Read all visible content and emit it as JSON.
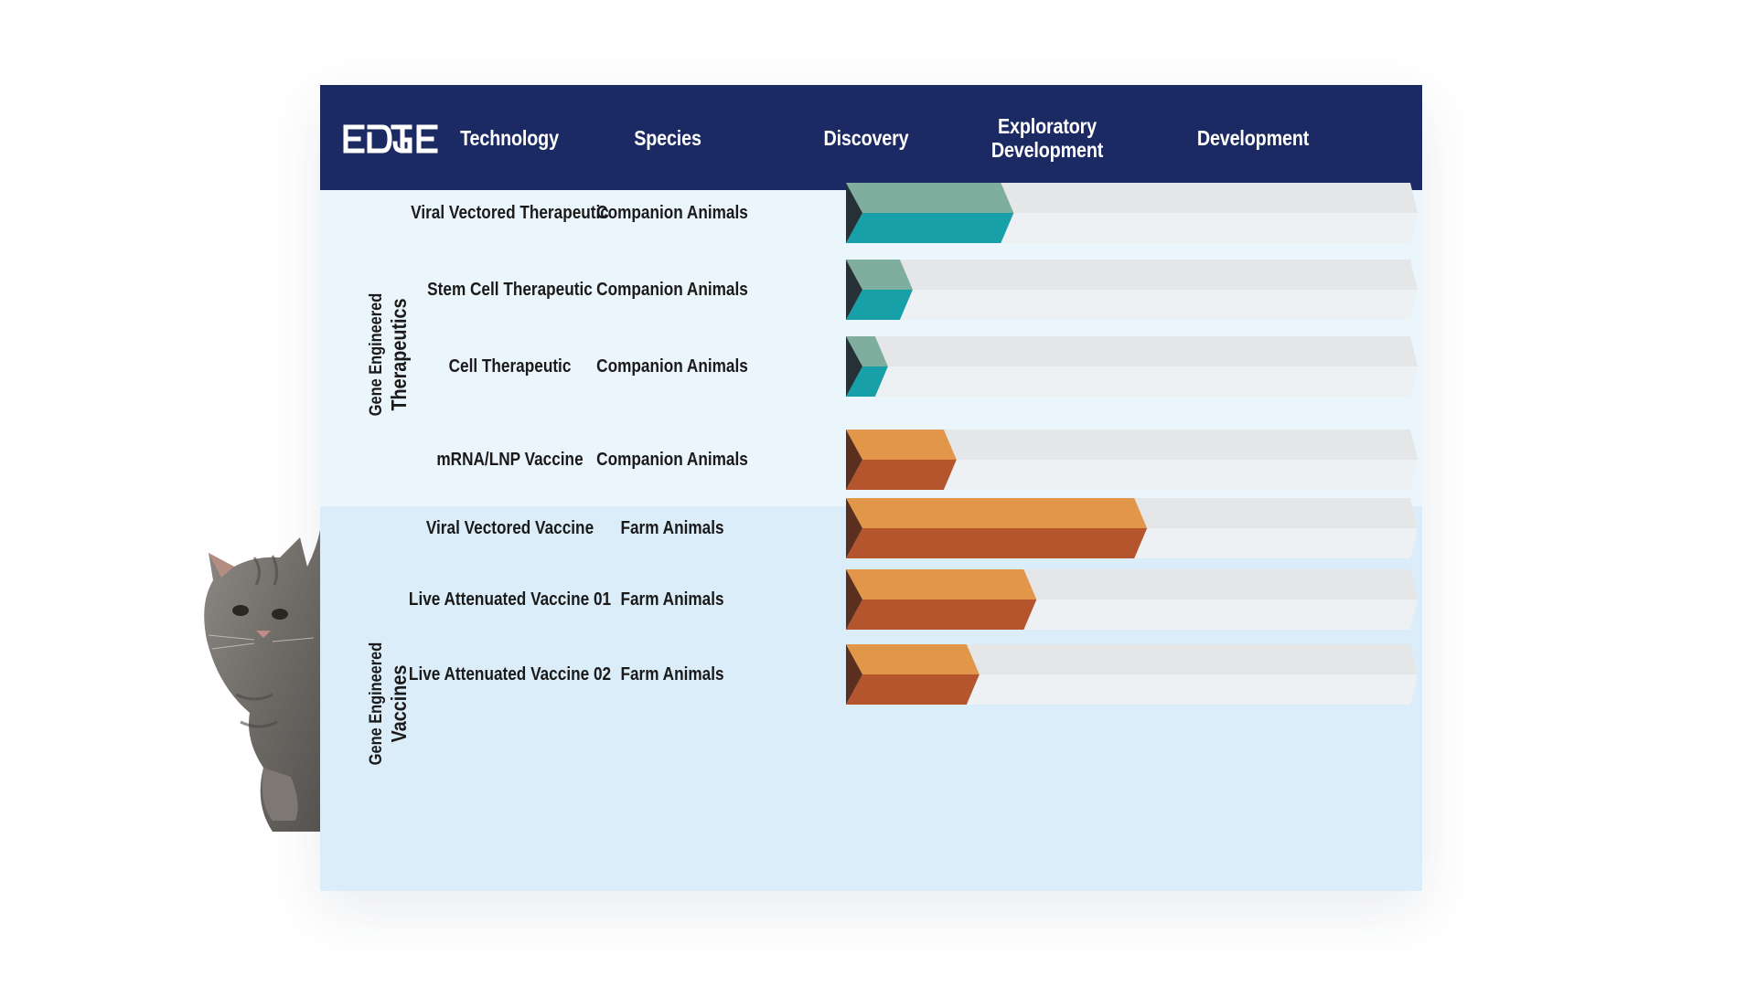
{
  "header": {
    "logo_text": "EDGE",
    "columns": [
      "Technology",
      "Species",
      "Discovery",
      "Exploratory Development",
      "Development"
    ],
    "colors": {
      "background": "#1c2a63",
      "text": "#ffffff"
    }
  },
  "groups": [
    {
      "label_line1": "Gene Engineered",
      "label_line2": "Therapeutics"
    },
    {
      "label_line1": "Gene Engineered",
      "label_line2": "Vaccines"
    }
  ],
  "illustration": "cat-peeking",
  "chart_data": {
    "type": "bar",
    "orientation": "horizontal",
    "title": "",
    "stages": [
      "Discovery",
      "Exploratory Development",
      "Development"
    ],
    "xlim": [
      0,
      3
    ],
    "rows": [
      {
        "group": 0,
        "technology": "Viral Vectored Therapeutic",
        "species": "Companion Animals",
        "progress": 0.88
      },
      {
        "group": 0,
        "technology": "Stem Cell Therapeutic",
        "species": "Companion Animals",
        "progress": 0.35
      },
      {
        "group": 0,
        "technology": "Cell Therapeutic",
        "species": "Companion Animals",
        "progress": 0.22
      },
      {
        "group": 1,
        "technology": "mRNA/LNP Vaccine",
        "species": "Companion Animals",
        "progress": 0.58
      },
      {
        "group": 1,
        "technology": "Viral Vectored Vaccine",
        "species": "Farm Animals",
        "progress": 1.58
      },
      {
        "group": 1,
        "technology": "Live Attenuated Vaccine 01",
        "species": "Farm Animals",
        "progress": 1.0
      },
      {
        "group": 1,
        "technology": "Live Attenuated Vaccine 02",
        "species": "Farm Animals",
        "progress": 0.7
      }
    ],
    "colors": {
      "therapeutics_top": "#7fae9f",
      "therapeutics_bottom": "#17a0a8",
      "therapeutics_tip": "#253037",
      "vaccines_top": "#e1964a",
      "vaccines_bottom": "#b5552e",
      "vaccines_tip": "#5a2f1e",
      "track_top": "#e4e6e8",
      "track_bottom": "#eef1f3"
    }
  }
}
